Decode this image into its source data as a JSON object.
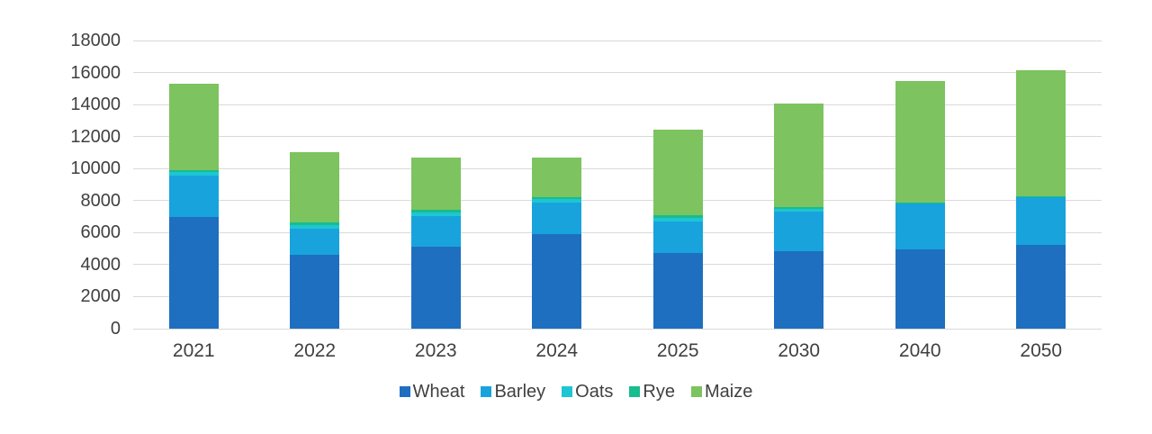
{
  "chart_data": {
    "type": "bar",
    "stacked": true,
    "title": "",
    "xlabel": "",
    "ylabel": "",
    "categories": [
      "2021",
      "2022",
      "2023",
      "2024",
      "2025",
      "2030",
      "2040",
      "2050"
    ],
    "series": [
      {
        "name": "Wheat",
        "color": "#1e6fc0",
        "values": [
          7000,
          4600,
          5100,
          5900,
          4700,
          4850,
          4950,
          5250
        ]
      },
      {
        "name": "Barley",
        "color": "#18a3dc",
        "values": [
          2550,
          1650,
          1950,
          2000,
          2000,
          2470,
          2850,
          2960
        ]
      },
      {
        "name": "Oats",
        "color": "#1ec6d3",
        "values": [
          250,
          200,
          230,
          210,
          230,
          180,
          60,
          50
        ]
      },
      {
        "name": "Rye",
        "color": "#17bd8d",
        "values": [
          120,
          170,
          140,
          100,
          140,
          100,
          30,
          25
        ]
      },
      {
        "name": "Maize",
        "color": "#7dc360",
        "values": [
          5400,
          4400,
          3280,
          2480,
          5360,
          6460,
          7580,
          7840
        ]
      }
    ],
    "totals": [
      15320,
      11020,
      10700,
      10690,
      12430,
      14060,
      15470,
      16125
    ],
    "y_ticks": [
      0,
      2000,
      4000,
      6000,
      8000,
      10000,
      12000,
      14000,
      16000,
      18000
    ],
    "ylim": [
      0,
      18000
    ],
    "grid": true,
    "gridline_color": "#d9d9d9",
    "text_color": "#404040",
    "legend_position": "bottom",
    "legend_entries": [
      "Wheat",
      "Barley",
      "Oats",
      "Rye",
      "Maize"
    ]
  }
}
